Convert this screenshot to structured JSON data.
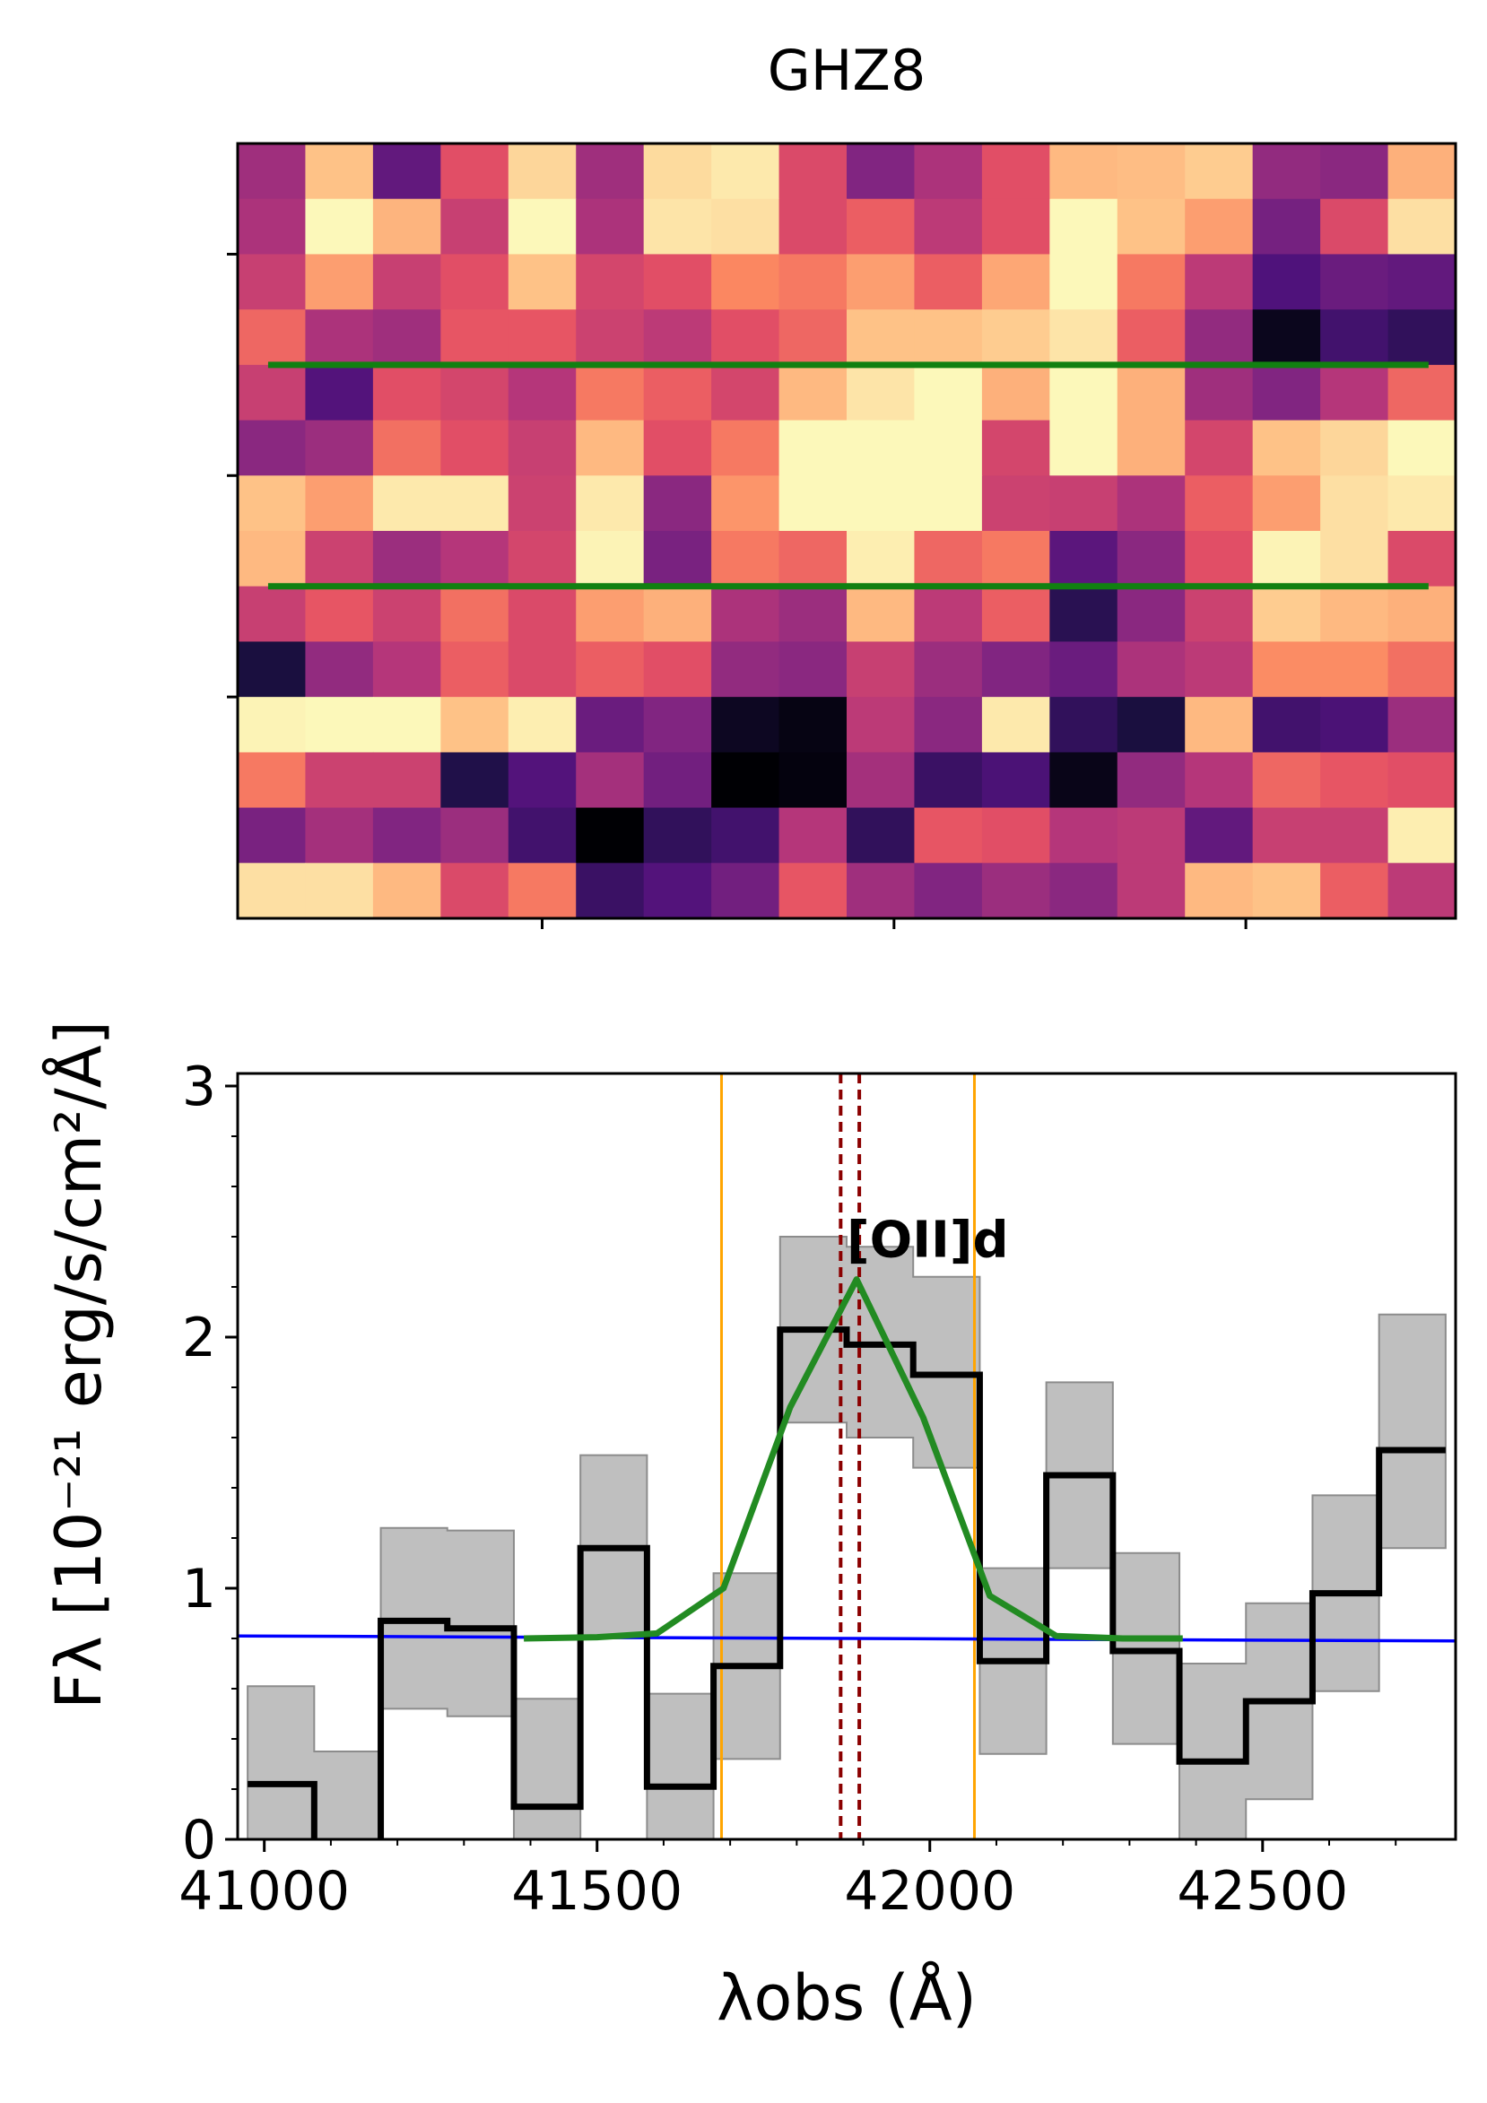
{
  "chart_data": [
    {
      "type": "heatmap",
      "title": "GHZ8",
      "colormap": "magma",
      "columns": 18,
      "rows": 14,
      "grid": false,
      "extraction_rows": [
        4,
        8
      ],
      "extraction_line_color": "#118011",
      "cells": [
        [
          0.45,
          0.88,
          0.3,
          0.62,
          0.92,
          0.45,
          0.93,
          0.96,
          0.6,
          0.38,
          0.48,
          0.62,
          0.86,
          0.87,
          0.9,
          0.42,
          0.4,
          0.84
        ],
        [
          0.48,
          0.99,
          0.85,
          0.55,
          0.99,
          0.48,
          0.95,
          0.94,
          0.6,
          0.66,
          0.52,
          0.62,
          0.99,
          0.88,
          0.8,
          0.35,
          0.6,
          0.94
        ],
        [
          0.55,
          0.8,
          0.55,
          0.62,
          0.88,
          0.58,
          0.62,
          0.75,
          0.72,
          0.8,
          0.66,
          0.82,
          0.99,
          0.72,
          0.52,
          0.25,
          0.32,
          0.3
        ],
        [
          0.68,
          0.48,
          0.45,
          0.64,
          0.64,
          0.56,
          0.52,
          0.62,
          0.68,
          0.88,
          0.88,
          0.9,
          0.95,
          0.66,
          0.42,
          0.05,
          0.22,
          0.18
        ],
        [
          0.55,
          0.26,
          0.62,
          0.58,
          0.5,
          0.72,
          0.66,
          0.58,
          0.86,
          0.95,
          0.99,
          0.84,
          0.99,
          0.84,
          0.45,
          0.38,
          0.5,
          0.68
        ],
        [
          0.4,
          0.44,
          0.7,
          0.62,
          0.55,
          0.86,
          0.62,
          0.72,
          0.99,
          0.99,
          0.99,
          0.58,
          0.99,
          0.84,
          0.58,
          0.88,
          0.92,
          0.99
        ],
        [
          0.88,
          0.8,
          0.96,
          0.96,
          0.56,
          0.96,
          0.4,
          0.78,
          0.99,
          0.99,
          0.99,
          0.56,
          0.55,
          0.48,
          0.66,
          0.8,
          0.94,
          0.96
        ],
        [
          0.86,
          0.56,
          0.44,
          0.5,
          0.58,
          0.98,
          0.36,
          0.72,
          0.68,
          0.97,
          0.68,
          0.72,
          0.28,
          0.4,
          0.62,
          0.98,
          0.94,
          0.6
        ],
        [
          0.55,
          0.64,
          0.56,
          0.7,
          0.6,
          0.8,
          0.84,
          0.48,
          0.44,
          0.86,
          0.52,
          0.66,
          0.16,
          0.4,
          0.56,
          0.9,
          0.86,
          0.84
        ],
        [
          0.12,
          0.42,
          0.5,
          0.66,
          0.6,
          0.66,
          0.62,
          0.42,
          0.4,
          0.55,
          0.44,
          0.38,
          0.32,
          0.48,
          0.52,
          0.76,
          0.76,
          0.7
        ],
        [
          0.98,
          0.99,
          0.99,
          0.88,
          0.97,
          0.32,
          0.38,
          0.06,
          0.03,
          0.52,
          0.4,
          0.96,
          0.18,
          0.12,
          0.86,
          0.22,
          0.24,
          0.44
        ],
        [
          0.72,
          0.56,
          0.56,
          0.14,
          0.26,
          0.46,
          0.34,
          0.0,
          0.02,
          0.46,
          0.2,
          0.24,
          0.04,
          0.42,
          0.5,
          0.68,
          0.64,
          0.62
        ],
        [
          0.36,
          0.46,
          0.38,
          0.44,
          0.22,
          0.0,
          0.18,
          0.22,
          0.5,
          0.18,
          0.64,
          0.62,
          0.5,
          0.52,
          0.3,
          0.55,
          0.55,
          0.97
        ],
        [
          0.94,
          0.94,
          0.86,
          0.6,
          0.72,
          0.2,
          0.26,
          0.34,
          0.64,
          0.45,
          0.38,
          0.44,
          0.4,
          0.52,
          0.86,
          0.88,
          0.66,
          0.52
        ]
      ]
    },
    {
      "type": "line",
      "xlabel": "λobs (Å)",
      "ylabel": "Fλ [10⁻²¹ erg/s/cm²/Å]",
      "xlim": [
        40960,
        42790
      ],
      "ylim": [
        0,
        3.05
      ],
      "xticks": [
        41000,
        41500,
        42000,
        42500
      ],
      "yticks": [
        0,
        1,
        2,
        3
      ],
      "grid": false,
      "annotation": "[OII]d",
      "annotation_x": 41875,
      "annotation_y": 2.32,
      "series": [
        {
          "kind": "step",
          "color": "#000000",
          "x": [
            41025,
            41125,
            41225,
            41325,
            41425,
            41525,
            41625,
            41725,
            41825,
            41925,
            42025,
            42125,
            42225,
            42325,
            42425,
            42525,
            42625,
            42725
          ],
          "values": [
            0.22,
            -0.33,
            0.87,
            0.84,
            0.13,
            1.16,
            0.21,
            0.69,
            2.03,
            1.97,
            1.85,
            0.71,
            1.45,
            0.75,
            0.31,
            0.55,
            0.98,
            1.55
          ],
          "lower": [
            -0.2,
            -0.8,
            0.52,
            0.49,
            -0.3,
            0.8,
            -0.16,
            0.32,
            1.66,
            1.6,
            1.48,
            0.34,
            1.08,
            0.38,
            -0.08,
            0.16,
            0.59,
            1.16
          ],
          "upper": [
            0.61,
            0.35,
            1.24,
            1.23,
            0.56,
            1.53,
            0.58,
            1.06,
            2.4,
            2.36,
            2.24,
            1.08,
            1.82,
            1.14,
            0.7,
            0.94,
            1.37,
            2.09
          ],
          "band_color": "#bfbfbf"
        },
        {
          "kind": "line",
          "color": "#228b22",
          "x": [
            41390,
            41500,
            41590,
            41690,
            41790,
            41890,
            41990,
            42090,
            42190,
            42290,
            42380
          ],
          "values": [
            0.8,
            0.805,
            0.82,
            1.0,
            1.72,
            2.23,
            1.68,
            0.97,
            0.81,
            0.8,
            0.8
          ]
        },
        {
          "kind": "line",
          "color": "#0000ff",
          "x": [
            40960,
            42790
          ],
          "values": [
            0.81,
            0.79
          ]
        }
      ],
      "vlines": [
        {
          "x": 41687,
          "color": "#ffa500",
          "style": "solid"
        },
        {
          "x": 42067,
          "color": "#ffa500",
          "style": "solid"
        },
        {
          "x": 41866,
          "color": "#8b0000",
          "style": "dashed"
        },
        {
          "x": 41894,
          "color": "#8b0000",
          "style": "dashed"
        }
      ]
    }
  ]
}
